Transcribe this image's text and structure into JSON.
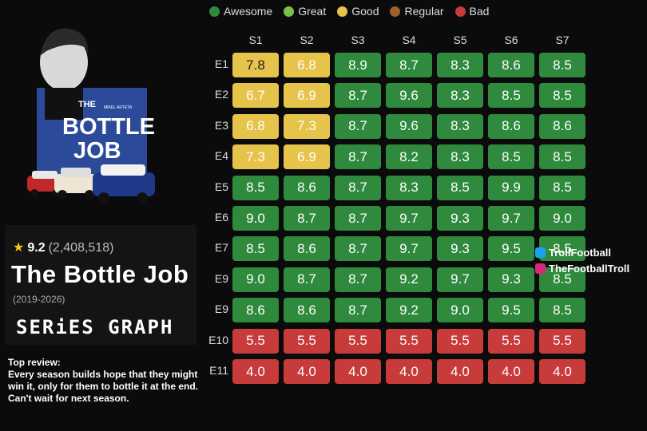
{
  "poster": {
    "small_text": "MIKEL ARTETA",
    "line1": "THE",
    "line2": "BOTTLE",
    "line3": "JOB"
  },
  "info": {
    "score": "9.2",
    "votes": "(2,408,518)",
    "title": "The Bottle Job",
    "years": "(2019-2026)",
    "brand": "SERiES GRAPH"
  },
  "review": {
    "heading": "Top review:",
    "text": "Every season builds hope that they might win it, only for them to bottle it at the end. Can't wait for next season."
  },
  "social": {
    "twitter": "TrollFootball",
    "instagram": "TheFootballTroll"
  },
  "colors": {
    "awesome": "#2f8a3e",
    "great": "#7cc04a",
    "good": "#e6c34a",
    "regular": "#a0602c",
    "bad": "#c73b3b"
  },
  "chart_data": {
    "type": "heatmap",
    "legend": [
      {
        "label": "Awesome",
        "color": "#2f8a3e"
      },
      {
        "label": "Great",
        "color": "#7cc04a"
      },
      {
        "label": "Good",
        "color": "#e6c34a"
      },
      {
        "label": "Regular",
        "color": "#a0602c"
      },
      {
        "label": "Bad",
        "color": "#c73b3b"
      }
    ],
    "legend_position": "top",
    "columns": [
      "S1",
      "S2",
      "S3",
      "S4",
      "S5",
      "S6",
      "S7"
    ],
    "rows": [
      "E1",
      "E2",
      "E3",
      "E4",
      "E5",
      "E6",
      "E7",
      "E9",
      "E9",
      "E10",
      "E11"
    ],
    "values": [
      [
        "7.8",
        "6.8",
        "8.9",
        "8.7",
        "8.3",
        "8.6",
        "8.5"
      ],
      [
        "6.7",
        "6.9",
        "8.7",
        "9.6",
        "8.3",
        "8.5",
        "8.5"
      ],
      [
        "6.8",
        "7.3",
        "8.7",
        "9.6",
        "8.3",
        "8.6",
        "8.6"
      ],
      [
        "7.3",
        "6.9",
        "8.7",
        "8.2",
        "8.3",
        "8.5",
        "8.5"
      ],
      [
        "8.5",
        "8.6",
        "8.7",
        "8.3",
        "8.5",
        "9.9",
        "8.5"
      ],
      [
        "9.0",
        "8.7",
        "8.7",
        "9.7",
        "9.3",
        "9.7",
        "9.0"
      ],
      [
        "8.5",
        "8.6",
        "8.7",
        "9.7",
        "9.3",
        "9.5",
        "8.5"
      ],
      [
        "9.0",
        "8.7",
        "8.7",
        "9.2",
        "9.7",
        "9.3",
        "8.5"
      ],
      [
        "8.6",
        "8.6",
        "8.7",
        "9.2",
        "9.0",
        "9.5",
        "8.5"
      ],
      [
        "5.5",
        "5.5",
        "5.5",
        "5.5",
        "5.5",
        "5.5",
        "5.5"
      ],
      [
        "4.0",
        "4.0",
        "4.0",
        "4.0",
        "4.0",
        "4.0",
        "4.0"
      ]
    ],
    "categories": [
      [
        "good",
        "good",
        "awesome",
        "awesome",
        "awesome",
        "awesome",
        "awesome"
      ],
      [
        "good",
        "good",
        "awesome",
        "awesome",
        "awesome",
        "awesome",
        "awesome"
      ],
      [
        "good",
        "good",
        "awesome",
        "awesome",
        "awesome",
        "awesome",
        "awesome"
      ],
      [
        "good",
        "good",
        "awesome",
        "awesome",
        "awesome",
        "awesome",
        "awesome"
      ],
      [
        "awesome",
        "awesome",
        "awesome",
        "awesome",
        "awesome",
        "awesome",
        "awesome"
      ],
      [
        "awesome",
        "awesome",
        "awesome",
        "awesome",
        "awesome",
        "awesome",
        "awesome"
      ],
      [
        "awesome",
        "awesome",
        "awesome",
        "awesome",
        "awesome",
        "awesome",
        "awesome"
      ],
      [
        "awesome",
        "awesome",
        "awesome",
        "awesome",
        "awesome",
        "awesome",
        "awesome"
      ],
      [
        "awesome",
        "awesome",
        "awesome",
        "awesome",
        "awesome",
        "awesome",
        "awesome"
      ],
      [
        "bad",
        "bad",
        "bad",
        "bad",
        "bad",
        "bad",
        "bad"
      ],
      [
        "bad",
        "bad",
        "bad",
        "bad",
        "bad",
        "bad",
        "bad"
      ]
    ]
  }
}
